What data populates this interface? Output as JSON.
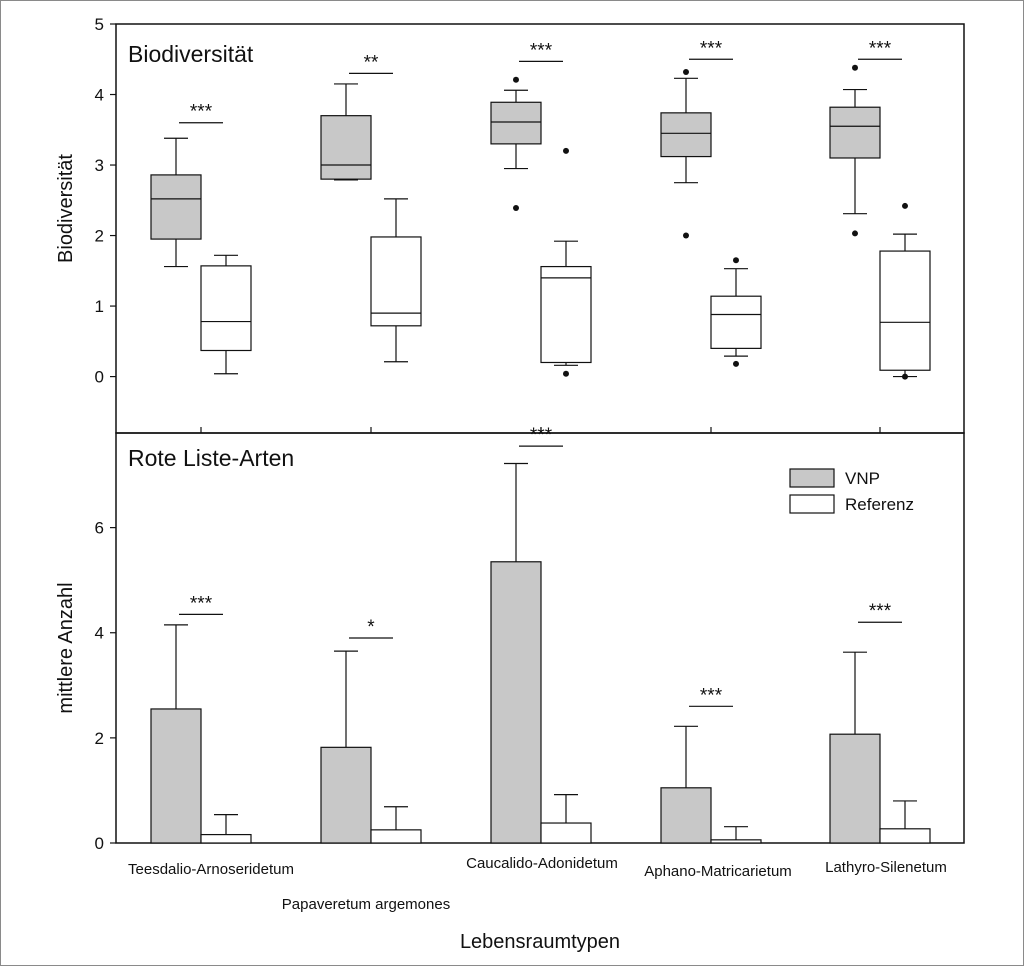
{
  "colors": {
    "vnp": "#c8c8c8",
    "referenz": "#ffffff",
    "stroke": "#111111"
  },
  "chart_data": [
    {
      "type": "box",
      "title": "Biodiversität",
      "ylabel": "Biodiversität",
      "ylim": [
        -0.8,
        5
      ],
      "yticks": [
        0,
        1,
        2,
        3,
        4,
        5
      ],
      "categories": [
        "Teesdalio-Arnoseridetum",
        "Papaveretum argemones",
        "Caucalido-Adonidetum",
        "Aphano-Matricarietum",
        "Lathyro-Silenetum"
      ],
      "series": [
        {
          "name": "VNP",
          "boxes": [
            {
              "min": 1.56,
              "q1": 1.95,
              "median": 2.52,
              "q3": 2.86,
              "max": 3.38,
              "outliers": []
            },
            {
              "min": 2.79,
              "q1": 2.8,
              "median": 3.0,
              "q3": 3.7,
              "max": 4.15,
              "outliers": []
            },
            {
              "min": 2.95,
              "q1": 3.3,
              "median": 3.61,
              "q3": 3.89,
              "max": 4.06,
              "outliers": [
                4.21,
                2.39
              ]
            },
            {
              "min": 2.75,
              "q1": 3.12,
              "median": 3.45,
              "q3": 3.74,
              "max": 4.23,
              "outliers": [
                4.32,
                2.0
              ]
            },
            {
              "min": 2.31,
              "q1": 3.1,
              "median": 3.55,
              "q3": 3.82,
              "max": 4.07,
              "outliers": [
                4.38,
                2.03
              ]
            }
          ]
        },
        {
          "name": "Referenz",
          "boxes": [
            {
              "min": 0.04,
              "q1": 0.37,
              "median": 0.78,
              "q3": 1.57,
              "max": 1.72,
              "outliers": []
            },
            {
              "min": 0.21,
              "q1": 0.72,
              "median": 0.9,
              "q3": 1.98,
              "max": 2.52,
              "outliers": []
            },
            {
              "min": 0.16,
              "q1": 0.2,
              "median": 1.4,
              "q3": 1.56,
              "max": 1.92,
              "outliers": [
                0.04,
                3.2
              ]
            },
            {
              "min": 0.29,
              "q1": 0.4,
              "median": 0.88,
              "q3": 1.14,
              "max": 1.53,
              "outliers": [
                1.65,
                0.18
              ]
            },
            {
              "min": 0.0,
              "q1": 0.09,
              "median": 0.77,
              "q3": 1.78,
              "max": 2.02,
              "outliers": [
                2.42,
                0.0
              ]
            }
          ]
        }
      ],
      "significance": [
        "***",
        "**",
        "***",
        "***",
        "***"
      ],
      "significance_y": [
        3.6,
        4.3,
        4.47,
        4.5,
        4.5
      ]
    },
    {
      "type": "bar",
      "title": "Rote Liste-Arten",
      "xlabel": "Lebensraumtypen",
      "ylabel": "mittlere Anzahl",
      "ylim": [
        0,
        7.8
      ],
      "yticks": [
        0,
        2,
        4,
        6
      ],
      "categories": [
        "Teesdalio-Arnoseridetum",
        "Papaveretum argemones",
        "Caucalido-Adonidetum",
        "Aphano-Matricarietum",
        "Lathyro-Silenetum"
      ],
      "series": [
        {
          "name": "VNP",
          "values": [
            2.55,
            1.82,
            5.35,
            1.05,
            2.07
          ],
          "error_upper": [
            4.15,
            3.65,
            7.22,
            2.22,
            3.63
          ]
        },
        {
          "name": "Referenz",
          "values": [
            0.16,
            0.25,
            0.38,
            0.06,
            0.27
          ],
          "error_upper": [
            0.54,
            0.69,
            0.92,
            0.31,
            0.8
          ]
        }
      ],
      "significance": [
        "***",
        "*",
        "***",
        "***",
        "***"
      ],
      "significance_y": [
        4.35,
        3.9,
        7.55,
        2.6,
        4.2
      ],
      "legend": {
        "position": "top-right",
        "entries": [
          "VNP",
          "Referenz"
        ]
      }
    }
  ]
}
